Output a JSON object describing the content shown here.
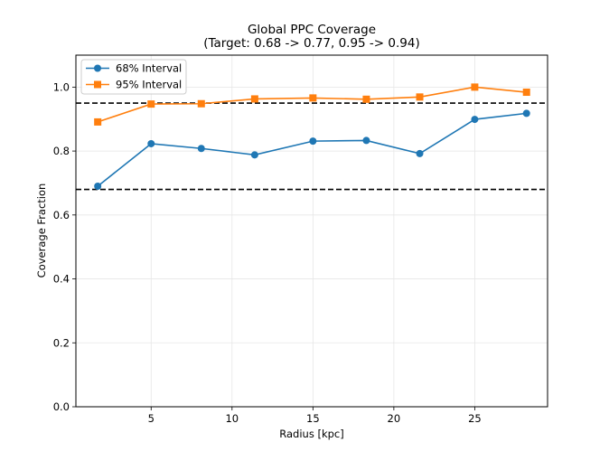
{
  "chart_data": {
    "type": "line",
    "title": "Global PPC Coverage",
    "subtitle": "(Target: 0.68 -> 0.77, 0.95 -> 0.94)",
    "xlabel": "Radius [kpc]",
    "ylabel": "Coverage Fraction",
    "xlim": [
      0.35,
      29.5
    ],
    "ylim": [
      0.0,
      1.1
    ],
    "xticks": [
      5,
      10,
      15,
      20,
      25
    ],
    "xtick_labels": [
      "5",
      "10",
      "15",
      "20",
      "25"
    ],
    "yticks": [
      0.0,
      0.2,
      0.4,
      0.6,
      0.8,
      1.0
    ],
    "ytick_labels": [
      "0.0",
      "0.2",
      "0.4",
      "0.6",
      "0.8",
      "1.0"
    ],
    "grid": true,
    "legend_position": "top-left",
    "x": [
      1.7,
      5.0,
      8.1,
      11.4,
      15.0,
      18.3,
      21.6,
      25.0,
      28.2
    ],
    "series": [
      {
        "name": "68% Interval",
        "marker": "circle",
        "color": "#1f77b4",
        "values": [
          0.69,
          0.823,
          0.808,
          0.788,
          0.831,
          0.833,
          0.792,
          0.899,
          0.918
        ]
      },
      {
        "name": "95% Interval",
        "marker": "square",
        "color": "#ff7f0e",
        "values": [
          0.891,
          0.947,
          0.948,
          0.963,
          0.966,
          0.962,
          0.969,
          1.0,
          0.984
        ]
      }
    ],
    "reference_lines": [
      {
        "y": 0.95,
        "style": "dashed",
        "color": "#000000"
      },
      {
        "y": 0.68,
        "style": "dashed",
        "color": "#000000"
      }
    ]
  }
}
